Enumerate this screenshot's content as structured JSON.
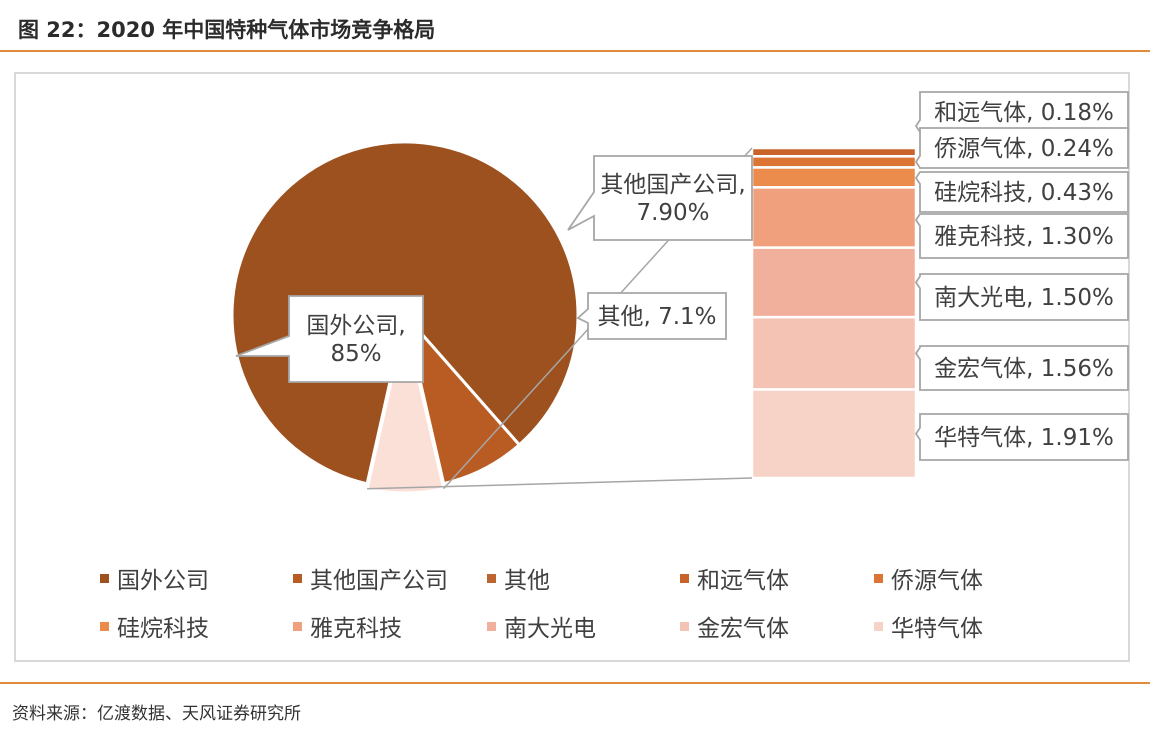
{
  "header": {
    "title": "图 22：2020 年中国特种气体市场竞争格局"
  },
  "footer": {
    "source": "资料来源：亿渡数据、天风证券研究所"
  },
  "chart_data": {
    "type": "pie",
    "subtype": "bar-of-pie",
    "title": "",
    "pie": {
      "categories": [
        "国外公司",
        "其他国产公司",
        "其他"
      ],
      "values": [
        85,
        7.9,
        7.1
      ],
      "labels": [
        "国外公司,\n85%",
        "其他国产公司,\n7.90%",
        "其他, 7.1%"
      ],
      "colors": [
        "#9c511e",
        "#b95c23",
        "#fbe0d8"
      ]
    },
    "bar": {
      "categories": [
        "和远气体",
        "侨源气体",
        "硅烷科技",
        "雅克科技",
        "南大光电",
        "金宏气体",
        "华特气体"
      ],
      "values": [
        0.18,
        0.24,
        0.43,
        1.3,
        1.5,
        1.56,
        1.91
      ],
      "labels": [
        "和远气体, 0.18%",
        "侨源气体, 0.24%",
        "硅烷科技, 0.43%",
        "雅克科技, 1.30%",
        "南大光电, 1.50%",
        "金宏气体, 1.56%",
        "华特气体, 1.91%"
      ],
      "colors": [
        "#c8642a",
        "#dc7434",
        "#ec8c4c",
        "#f0a07c",
        "#f1b09c",
        "#f4c3b4",
        "#f6d2c7"
      ]
    },
    "legend": {
      "position": "bottom",
      "items": [
        "国外公司",
        "其他国产公司",
        "其他",
        "和远气体",
        "侨源气体",
        "硅烷科技",
        "雅克科技",
        "南大光电",
        "金宏气体",
        "华特气体"
      ],
      "colors": [
        "#9c511e",
        "#b95c23",
        "#bd6530",
        "#c8642a",
        "#dc7434",
        "#ec8c4c",
        "#f0a07c",
        "#f1b09c",
        "#f4c3b4",
        "#f6d2c7"
      ]
    }
  }
}
